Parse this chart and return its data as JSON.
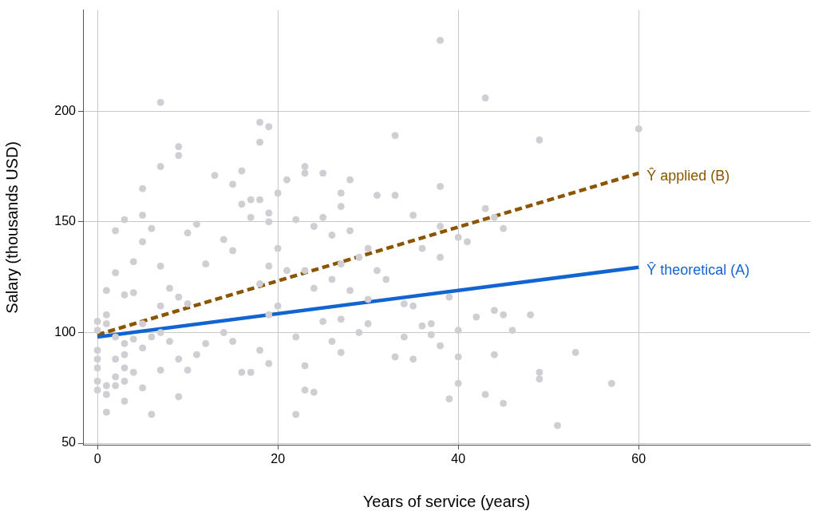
{
  "chart_data": {
    "type": "scatter",
    "xlabel": "Years of service (years)",
    "ylabel": "Salary (thousands USD)",
    "xlim": [
      -1.6,
      79
    ],
    "ylim": [
      49.3,
      245.7
    ],
    "xticks": [
      0,
      20,
      40,
      60
    ],
    "yticks": [
      50,
      100,
      150,
      200
    ],
    "grid": true,
    "legend": false,
    "marker": "circle",
    "series": [
      {
        "color": "#d0ced3",
        "x": [
          0,
          0,
          0,
          0,
          0,
          0,
          0,
          1,
          1,
          1,
          1,
          1,
          1,
          2,
          2,
          2,
          2,
          2,
          2,
          3,
          3,
          3,
          3,
          3,
          3,
          3,
          4,
          4,
          4,
          4,
          5,
          5,
          5,
          5,
          5,
          5,
          6,
          6,
          6,
          7,
          7,
          7,
          7,
          7,
          7,
          8,
          8,
          9,
          9,
          9,
          9,
          9,
          10,
          10,
          10,
          11,
          11,
          12,
          12,
          13,
          14,
          14,
          15,
          15,
          15,
          16,
          16,
          16,
          17,
          17,
          17,
          18,
          18,
          18,
          18,
          18,
          19,
          19,
          19,
          19,
          19,
          19,
          20,
          20,
          20,
          21,
          21,
          22,
          22,
          22,
          23,
          23,
          23,
          23,
          23,
          24,
          24,
          24,
          25,
          25,
          25,
          26,
          26,
          26,
          27,
          27,
          27,
          27,
          27,
          28,
          28,
          28,
          29,
          29,
          30,
          30,
          30,
          31,
          31,
          32,
          33,
          33,
          33,
          34,
          34,
          35,
          35,
          35,
          36,
          36,
          37,
          37,
          38,
          38,
          38,
          38,
          38,
          39,
          39,
          40,
          40,
          40,
          40,
          41,
          42,
          43,
          43,
          43,
          44,
          44,
          44,
          45,
          45,
          45,
          46,
          48,
          49,
          49,
          49,
          51,
          53,
          57,
          60
        ],
        "values": [
          105,
          101,
          92,
          88,
          84,
          78,
          74,
          108,
          104,
          119,
          64,
          72,
          76,
          146,
          127,
          98,
          88,
          80,
          76,
          151,
          117,
          95,
          90,
          84,
          69,
          78,
          132,
          118,
          97,
          82,
          165,
          153,
          141,
          104,
          93,
          75,
          147,
          98,
          63,
          204,
          175,
          130,
          112,
          100,
          83,
          120,
          96,
          184,
          180,
          116,
          88,
          71,
          145,
          113,
          83,
          149,
          90,
          131,
          95,
          171,
          142,
          100,
          167,
          137,
          96,
          173,
          158,
          82,
          160,
          152,
          82,
          195,
          186,
          160,
          122,
          92,
          193,
          154,
          150,
          130,
          108,
          86,
          163,
          138,
          112,
          169,
          128,
          151,
          98,
          63,
          175,
          172,
          128,
          85,
          74,
          148,
          120,
          73,
          172,
          152,
          105,
          144,
          124,
          96,
          163,
          157,
          131,
          106,
          91,
          169,
          146,
          119,
          134,
          100,
          138,
          115,
          104,
          162,
          128,
          124,
          189,
          162,
          89,
          113,
          98,
          153,
          112,
          88,
          138,
          103,
          104,
          99,
          232,
          166,
          148,
          134,
          94,
          70,
          116,
          143,
          101,
          77,
          89,
          141,
          107,
          206,
          156,
          72,
          152,
          110,
          90,
          147,
          108,
          68,
          101,
          108,
          187,
          82,
          79,
          58,
          91,
          77,
          192
        ]
      },
      {
        "type": "line",
        "name": "Ŷ theoretical (A)",
        "color": "#1264d0",
        "x": [
          0,
          60
        ],
        "values": [
          98,
          129.5
        ],
        "marker": "none",
        "line_style": "solid"
      },
      {
        "type": "line",
        "name": "Ŷ applied (B)",
        "color": "#8b5500",
        "x": [
          0,
          60
        ],
        "values": [
          99,
          172
        ],
        "marker": "none",
        "line_style": "dashed"
      }
    ]
  }
}
